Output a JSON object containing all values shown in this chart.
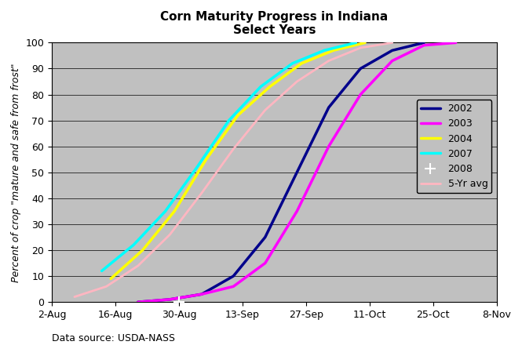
{
  "title_line1": "Corn Maturity Progress in Indiana",
  "title_line2": "Select Years",
  "ylabel": "Percent of crop \"mature and safe from frost\"",
  "xlabel_note": "Data source: USDA-NASS",
  "background_color": "#c0c0c0",
  "ylim": [
    0,
    100
  ],
  "yticks": [
    0,
    10,
    20,
    30,
    40,
    50,
    60,
    70,
    80,
    90,
    100
  ],
  "series": {
    "2002": {
      "color": "#00008B",
      "linewidth": 2.5,
      "doy_values": [
        [
          234,
          0
        ],
        [
          241,
          1
        ],
        [
          248,
          3
        ],
        [
          255,
          10
        ],
        [
          262,
          25
        ],
        [
          269,
          50
        ],
        [
          276,
          75
        ],
        [
          283,
          90
        ],
        [
          290,
          97
        ],
        [
          297,
          100
        ]
      ]
    },
    "2003": {
      "color": "#FF00FF",
      "linewidth": 2.5,
      "doy_values": [
        [
          234,
          0
        ],
        [
          241,
          1
        ],
        [
          248,
          3
        ],
        [
          255,
          6
        ],
        [
          262,
          15
        ],
        [
          269,
          35
        ],
        [
          276,
          60
        ],
        [
          283,
          80
        ],
        [
          290,
          93
        ],
        [
          297,
          99
        ],
        [
          304,
          100
        ]
      ]
    },
    "2004": {
      "color": "#FFFF00",
      "linewidth": 2.5,
      "doy_values": [
        [
          228,
          9
        ],
        [
          235,
          20
        ],
        [
          242,
          35
        ],
        [
          249,
          55
        ],
        [
          256,
          72
        ],
        [
          263,
          83
        ],
        [
          270,
          92
        ],
        [
          277,
          97
        ],
        [
          284,
          100
        ]
      ]
    },
    "2007": {
      "color": "#00FFFF",
      "linewidth": 2.5,
      "doy_values": [
        [
          226,
          12
        ],
        [
          233,
          22
        ],
        [
          240,
          35
        ],
        [
          247,
          52
        ],
        [
          254,
          70
        ],
        [
          261,
          83
        ],
        [
          268,
          92
        ],
        [
          275,
          97
        ],
        [
          282,
          100
        ]
      ]
    },
    "2008": {
      "color": "#FF0000",
      "linewidth": 2.0,
      "marker": "+",
      "markersize": 10,
      "doy_values": [
        [
          243,
          0
        ]
      ]
    },
    "5-Yr avg": {
      "color": "#FFB6C1",
      "linewidth": 2.0,
      "doy_values": [
        [
          220,
          2
        ],
        [
          227,
          6
        ],
        [
          234,
          14
        ],
        [
          241,
          26
        ],
        [
          248,
          42
        ],
        [
          255,
          59
        ],
        [
          262,
          74
        ],
        [
          269,
          85
        ],
        [
          276,
          93
        ],
        [
          283,
          98
        ],
        [
          290,
          100
        ]
      ]
    }
  },
  "x_tick_labels": [
    "2-Aug",
    "16-Aug",
    "30-Aug",
    "13-Sep",
    "27-Sep",
    "11-Oct",
    "25-Oct",
    "8-Nov"
  ],
  "x_tick_doys": [
    215,
    229,
    243,
    257,
    271,
    285,
    299,
    313
  ],
  "xlim_doys": [
    215,
    313
  ],
  "legend_order": [
    "2002",
    "2003",
    "2004",
    "2007",
    "2008",
    "5-Yr avg"
  ]
}
